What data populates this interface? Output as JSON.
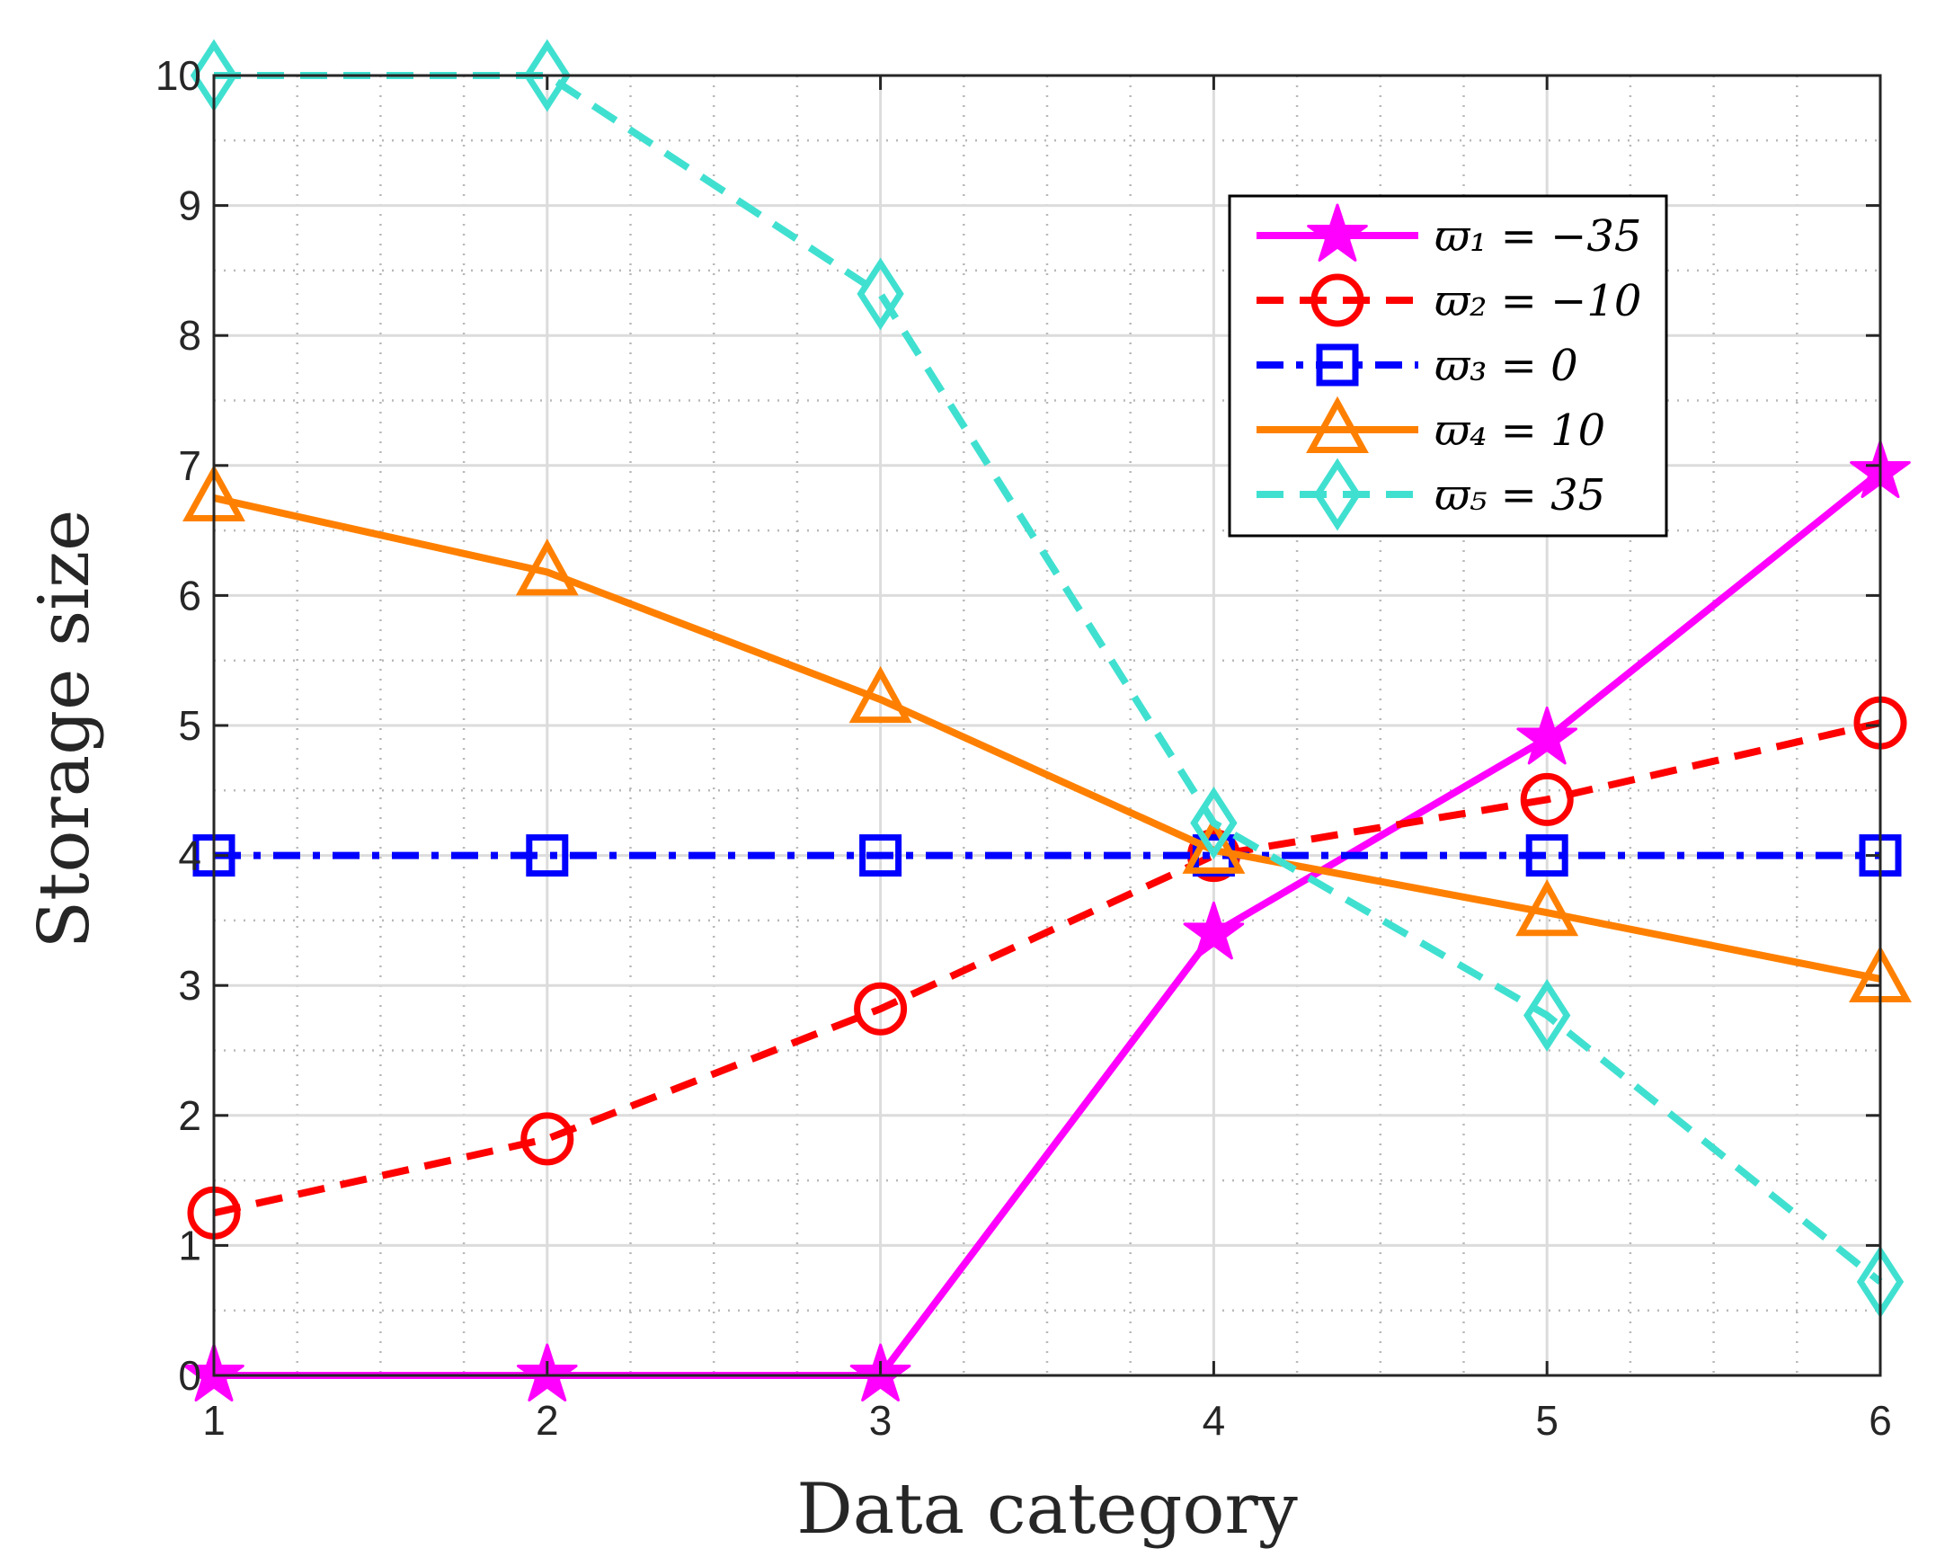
{
  "chart_data": {
    "type": "line",
    "xlabel": "Data category",
    "ylabel": "Storage size",
    "xlim": [
      1,
      6
    ],
    "ylim": [
      0,
      10
    ],
    "xticks": [
      1,
      2,
      3,
      4,
      5,
      6
    ],
    "yticks": [
      0,
      1,
      2,
      3,
      4,
      5,
      6,
      7,
      8,
      9,
      10
    ],
    "grid": true,
    "minor_grid": true,
    "legend_location": "top-right",
    "x": [
      1,
      2,
      3,
      4,
      5,
      6
    ],
    "series": [
      {
        "name": "ϖ₁ = −35",
        "color": "#ff00ff",
        "line": "solid",
        "marker": "star",
        "values": [
          0,
          0,
          0,
          3.4,
          4.9,
          6.95
        ]
      },
      {
        "name": "ϖ₂ = −10",
        "color": "#ff0000",
        "line": "dashed",
        "marker": "circle",
        "values": [
          1.25,
          1.82,
          2.82,
          4.0,
          4.43,
          5.02
        ]
      },
      {
        "name": "ϖ₃ = 0",
        "color": "#0000ff",
        "line": "dashdot",
        "marker": "square",
        "values": [
          4,
          4,
          4,
          4,
          4,
          4
        ]
      },
      {
        "name": "ϖ₄ = 10",
        "color": "#ff8000",
        "line": "solid",
        "marker": "triangle",
        "values": [
          6.75,
          6.18,
          5.2,
          4.04,
          3.56,
          3.05
        ]
      },
      {
        "name": "ϖ₅ = 35",
        "color": "#40e0d0",
        "line": "dashed",
        "marker": "diamond",
        "values": [
          10,
          10,
          8.32,
          4.25,
          2.77,
          0.72
        ]
      }
    ]
  }
}
